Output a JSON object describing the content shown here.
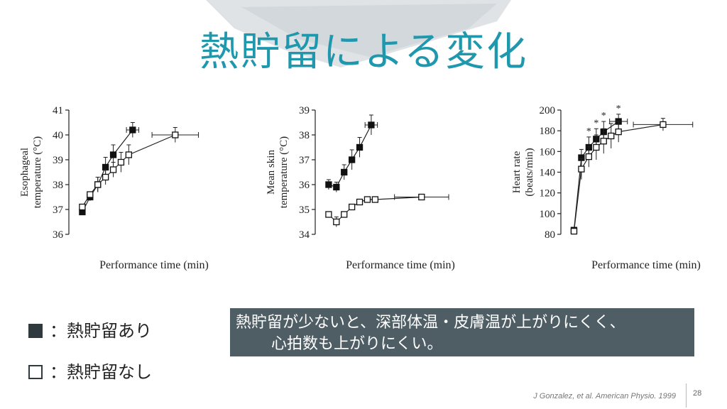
{
  "slide": {
    "title": "熱貯留による変化",
    "legend": [
      {
        "symbol": "■",
        "label": "：熱貯留あり",
        "color": "#2f3a3f"
      },
      {
        "symbol": "□",
        "label": "：熱貯留なし",
        "color": "#2f3a3f"
      }
    ],
    "callout": {
      "line1": "熱貯留が少ないと、深部体温・皮膚温が上がりにくく、",
      "line2": "心拍数も上がりにくい。"
    },
    "citation": "J Gonzalez, et al. American Physio. 1999",
    "page_number": "28"
  },
  "colors": {
    "title": "#1f98ad",
    "callout_bg": "#4f5e65",
    "brush": "#d6dbde"
  },
  "chart_data": [
    {
      "type": "line",
      "ylabel": "Esophageal temperature (°C)",
      "ylabel_lines": [
        "Esophageal",
        "temperature (°C)"
      ],
      "xlabel": "Performance time (min)",
      "ylim": [
        36,
        41
      ],
      "xlim": [
        0,
        22
      ],
      "yticks": [
        36,
        37,
        38,
        39,
        40,
        41
      ],
      "grid": false,
      "series": [
        {
          "marker": "filled",
          "x": [
            1,
            2,
            3,
            4,
            5,
            7.5
          ],
          "y": [
            36.9,
            37.5,
            38.0,
            38.7,
            39.2,
            40.2
          ],
          "err": [
            0.1,
            0.15,
            0.3,
            0.4,
            0.4,
            0.3
          ],
          "xerr_last": 0.8
        },
        {
          "marker": "open",
          "x": [
            1,
            2,
            3,
            4,
            5,
            6,
            7,
            13
          ],
          "y": [
            37.1,
            37.6,
            38.0,
            38.3,
            38.6,
            38.9,
            39.2,
            40.0
          ],
          "err": [
            0.1,
            0.1,
            0.3,
            0.3,
            0.3,
            0.4,
            0.4,
            0.3
          ],
          "xerr_last": 3
        }
      ]
    },
    {
      "type": "line",
      "ylabel": "Mean skin temperature (°C)",
      "ylabel_lines": [
        "Mean skin",
        "temperature (°C)"
      ],
      "xlabel": "Performance time (min)",
      "ylim": [
        34,
        39
      ],
      "xlim": [
        0,
        22
      ],
      "yticks": [
        34,
        35,
        36,
        37,
        38,
        39
      ],
      "grid": false,
      "series": [
        {
          "marker": "filled",
          "x": [
            1,
            2,
            3,
            4,
            5,
            6.5
          ],
          "y": [
            36.0,
            35.9,
            36.5,
            37.0,
            37.5,
            38.4
          ],
          "err": [
            0.2,
            0.2,
            0.3,
            0.4,
            0.4,
            0.4
          ],
          "xerr_last": 0.8
        },
        {
          "marker": "open",
          "x": [
            1,
            2,
            3,
            4,
            5,
            6,
            7,
            13
          ],
          "y": [
            34.8,
            34.5,
            34.8,
            35.1,
            35.3,
            35.4,
            35.4,
            35.5
          ],
          "err": [
            0.1,
            0.2,
            0.1,
            0.1,
            0.1,
            0.1,
            0.1,
            0.1
          ],
          "xerr_last": 3.5
        }
      ]
    },
    {
      "type": "line",
      "ylabel": "Heart rate (beats/min)",
      "ylabel_lines": [
        "Heart rate",
        "(beats/min)"
      ],
      "xlabel": "Performance time (min)",
      "ylim": [
        80,
        200
      ],
      "xlim": [
        0,
        22
      ],
      "yticks": [
        80,
        100,
        120,
        140,
        160,
        180,
        200
      ],
      "grid": false,
      "annotations": [
        "*",
        "*",
        "*",
        "*"
      ],
      "series": [
        {
          "marker": "filled",
          "x": [
            1,
            2,
            3,
            4,
            5,
            7
          ],
          "y": [
            84,
            154,
            164,
            172,
            179,
            189
          ],
          "err": [
            2,
            8,
            10,
            10,
            10,
            7
          ],
          "xerr_last": 1.2,
          "sig": [
            2,
            3,
            4,
            5
          ]
        },
        {
          "marker": "open",
          "x": [
            1,
            2,
            3,
            4,
            5,
            6,
            7,
            13
          ],
          "y": [
            83,
            143,
            155,
            164,
            170,
            175,
            179,
            186
          ],
          "err": [
            2,
            10,
            10,
            12,
            12,
            12,
            10,
            6
          ],
          "xerr_last": 4
        }
      ]
    }
  ]
}
